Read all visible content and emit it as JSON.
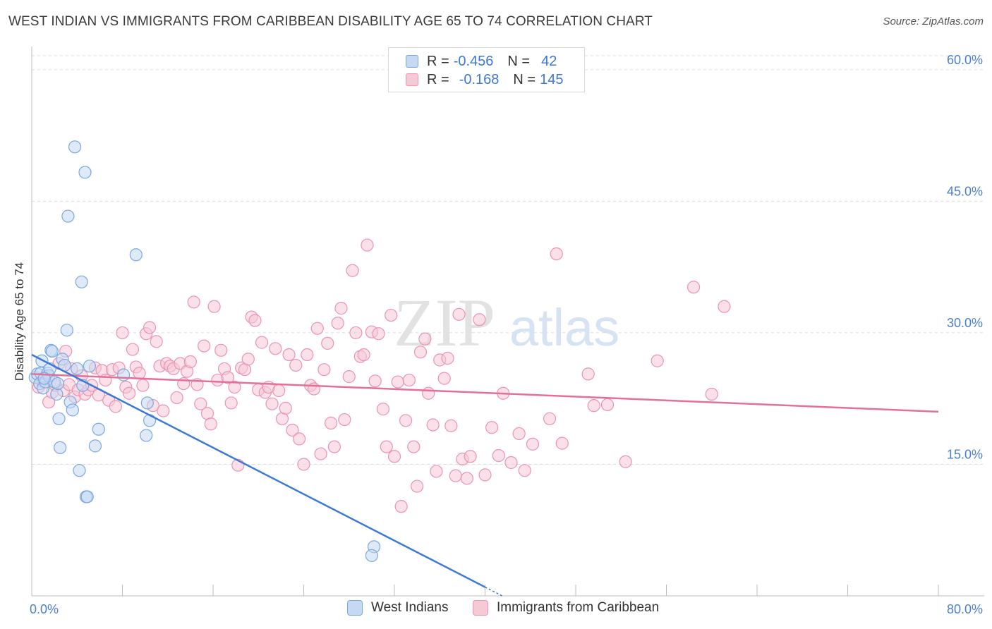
{
  "title": "WEST INDIAN VS IMMIGRANTS FROM CARIBBEAN DISABILITY AGE 65 TO 74 CORRELATION CHART",
  "source": "Source: ZipAtlas.com",
  "watermark": {
    "zip": "ZIP",
    "atlas": "atlas"
  },
  "legend": {
    "rows": [
      {
        "r_label": "R =",
        "r_value": "-0.456",
        "n_label": "N =",
        "n_value": "42"
      },
      {
        "r_label": "R =",
        "r_value": "-0.168",
        "n_label": "N =",
        "n_value": "145"
      }
    ]
  },
  "colors": {
    "blue_fill": "#c5d9f3",
    "blue_stroke": "#7ba7e0",
    "blue_line": "#3b78d8",
    "pink_fill": "#f6c9d7",
    "pink_stroke": "#eb93b1",
    "pink_line": "#e4709a",
    "grid": "#dcdcdc",
    "axis_text": "#4a7fd0"
  },
  "chart_data": {
    "type": "scatter",
    "title": "WEST INDIAN VS IMMIGRANTS FROM CARIBBEAN DISABILITY AGE 65 TO 74 CORRELATION CHART",
    "xlabel": "",
    "ylabel": "Disability Age 65 to 74",
    "xlim": [
      0,
      80
    ],
    "ylim": [
      0,
      62
    ],
    "x_ticks": [
      0,
      8,
      16,
      24,
      32,
      40,
      48,
      56,
      64,
      72,
      80
    ],
    "x_tick_labels": {
      "0": "0.0%",
      "80": "80.0%"
    },
    "y_ticks": [
      15,
      30,
      45,
      60
    ],
    "y_tick_labels": [
      "15.0%",
      "30.0%",
      "45.0%",
      "60.0%"
    ],
    "grid": true,
    "legend_position": "top-center",
    "series": [
      {
        "name": "West Indians",
        "r": -0.456,
        "n": 42,
        "trend": {
          "x": [
            0,
            40
          ],
          "y": [
            27.5,
            1.0
          ],
          "dashed_extension_to_x": 41.5
        },
        "points": [
          [
            0.3,
            24.9
          ],
          [
            0.5,
            25.3
          ],
          [
            0.7,
            24.2
          ],
          [
            0.8,
            25.4
          ],
          [
            0.9,
            26.8
          ],
          [
            1.0,
            23.7
          ],
          [
            1.2,
            24.4
          ],
          [
            1.4,
            25.4
          ],
          [
            1.5,
            25.1
          ],
          [
            1.6,
            25.9
          ],
          [
            1.7,
            28.0
          ],
          [
            1.8,
            27.9
          ],
          [
            2.0,
            24.4
          ],
          [
            2.2,
            23.0
          ],
          [
            2.3,
            24.2
          ],
          [
            2.4,
            20.2
          ],
          [
            2.5,
            16.9
          ],
          [
            2.7,
            27.0
          ],
          [
            2.9,
            26.3
          ],
          [
            3.1,
            30.3
          ],
          [
            3.2,
            43.3
          ],
          [
            3.4,
            22.1
          ],
          [
            3.6,
            21.2
          ],
          [
            3.8,
            51.2
          ],
          [
            4.0,
            25.9
          ],
          [
            4.2,
            14.3
          ],
          [
            4.4,
            35.8
          ],
          [
            4.5,
            24.0
          ],
          [
            4.7,
            48.3
          ],
          [
            4.8,
            11.3
          ],
          [
            4.9,
            11.3
          ],
          [
            5.1,
            26.2
          ],
          [
            5.6,
            17.1
          ],
          [
            5.9,
            19.0
          ],
          [
            8.1,
            25.2
          ],
          [
            9.2,
            38.9
          ],
          [
            10.1,
            18.3
          ],
          [
            10.2,
            22.0
          ],
          [
            10.4,
            20.0
          ],
          [
            30.2,
            5.6
          ],
          [
            30.0,
            4.6
          ],
          [
            1.1,
            24.8
          ]
        ]
      },
      {
        "name": "Immigrants from Caribbean",
        "r": -0.168,
        "n": 145,
        "trend": {
          "x": [
            0,
            80
          ],
          "y": [
            25.3,
            21.0
          ]
        },
        "points": [
          [
            0.6,
            23.8
          ],
          [
            0.9,
            24.5
          ],
          [
            1.2,
            25.0
          ],
          [
            1.5,
            22.1
          ],
          [
            1.8,
            23.2
          ],
          [
            2.1,
            24.0
          ],
          [
            2.4,
            26.5
          ],
          [
            2.8,
            23.4
          ],
          [
            3.0,
            27.9
          ],
          [
            3.3,
            24.1
          ],
          [
            3.5,
            25.9
          ],
          [
            3.8,
            22.7
          ],
          [
            4.1,
            23.5
          ],
          [
            4.4,
            25.1
          ],
          [
            4.7,
            23.0
          ],
          [
            5.0,
            23.5
          ],
          [
            5.3,
            24.0
          ],
          [
            5.6,
            26.0
          ],
          [
            5.9,
            22.9
          ],
          [
            6.2,
            25.7
          ],
          [
            6.5,
            24.6
          ],
          [
            6.8,
            22.3
          ],
          [
            7.1,
            25.8
          ],
          [
            7.4,
            21.6
          ],
          [
            7.7,
            26.0
          ],
          [
            8.0,
            30.0
          ],
          [
            8.3,
            23.8
          ],
          [
            8.6,
            23.1
          ],
          [
            8.9,
            28.1
          ],
          [
            9.2,
            26.1
          ],
          [
            9.5,
            25.4
          ],
          [
            9.8,
            24.0
          ],
          [
            10.1,
            29.9
          ],
          [
            10.4,
            30.6
          ],
          [
            10.7,
            21.7
          ],
          [
            11.0,
            29.0
          ],
          [
            11.3,
            26.2
          ],
          [
            11.6,
            21.1
          ],
          [
            11.9,
            26.5
          ],
          [
            12.2,
            26.2
          ],
          [
            12.5,
            25.9
          ],
          [
            12.8,
            22.6
          ],
          [
            13.1,
            26.5
          ],
          [
            13.4,
            24.2
          ],
          [
            13.7,
            25.6
          ],
          [
            14.0,
            26.7
          ],
          [
            14.3,
            33.5
          ],
          [
            14.6,
            24.1
          ],
          [
            14.9,
            21.9
          ],
          [
            15.2,
            28.5
          ],
          [
            15.5,
            20.8
          ],
          [
            15.8,
            19.6
          ],
          [
            16.1,
            33.0
          ],
          [
            16.4,
            24.6
          ],
          [
            16.7,
            28.0
          ],
          [
            17.0,
            25.9
          ],
          [
            17.3,
            24.9
          ],
          [
            17.6,
            22.0
          ],
          [
            17.9,
            23.8
          ],
          [
            18.2,
            14.9
          ],
          [
            18.5,
            26.0
          ],
          [
            18.8,
            25.8
          ],
          [
            19.1,
            27.0
          ],
          [
            19.4,
            31.8
          ],
          [
            19.7,
            31.4
          ],
          [
            20.0,
            23.5
          ],
          [
            20.3,
            28.9
          ],
          [
            20.6,
            23.2
          ],
          [
            20.9,
            23.8
          ],
          [
            21.2,
            21.9
          ],
          [
            21.5,
            28.2
          ],
          [
            21.8,
            23.4
          ],
          [
            22.1,
            20.2
          ],
          [
            22.4,
            21.4
          ],
          [
            22.7,
            27.5
          ],
          [
            23.0,
            18.9
          ],
          [
            23.3,
            26.3
          ],
          [
            23.6,
            17.9
          ],
          [
            24.0,
            15.0
          ],
          [
            24.3,
            27.5
          ],
          [
            24.6,
            24.0
          ],
          [
            24.9,
            23.6
          ],
          [
            25.2,
            30.5
          ],
          [
            25.5,
            16.2
          ],
          [
            25.8,
            25.8
          ],
          [
            26.1,
            28.8
          ],
          [
            26.4,
            19.7
          ],
          [
            26.7,
            17.0
          ],
          [
            27.0,
            31.1
          ],
          [
            27.3,
            32.8
          ],
          [
            27.6,
            20.1
          ],
          [
            28.0,
            25.0
          ],
          [
            28.3,
            37.1
          ],
          [
            28.6,
            30.0
          ],
          [
            29.0,
            27.3
          ],
          [
            29.3,
            27.5
          ],
          [
            29.6,
            40.0
          ],
          [
            30.0,
            30.1
          ],
          [
            30.3,
            24.5
          ],
          [
            30.6,
            29.9
          ],
          [
            31.0,
            21.3
          ],
          [
            31.3,
            17.0
          ],
          [
            31.7,
            32.0
          ],
          [
            32.0,
            15.9
          ],
          [
            32.3,
            24.4
          ],
          [
            32.6,
            10.2
          ],
          [
            33.0,
            20.0
          ],
          [
            33.3,
            24.6
          ],
          [
            33.7,
            17.0
          ],
          [
            34.0,
            12.5
          ],
          [
            34.3,
            27.8
          ],
          [
            34.7,
            29.3
          ],
          [
            35.0,
            23.1
          ],
          [
            35.4,
            19.5
          ],
          [
            35.7,
            14.2
          ],
          [
            36.0,
            26.9
          ],
          [
            36.4,
            24.8
          ],
          [
            36.7,
            27.1
          ],
          [
            37.0,
            19.4
          ],
          [
            37.4,
            13.7
          ],
          [
            37.7,
            32.1
          ],
          [
            38.0,
            15.6
          ],
          [
            38.4,
            13.4
          ],
          [
            38.7,
            15.9
          ],
          [
            39.5,
            31.5
          ],
          [
            40.0,
            13.8
          ],
          [
            40.6,
            19.2
          ],
          [
            41.2,
            16.0
          ],
          [
            41.6,
            23.1
          ],
          [
            42.3,
            15.2
          ],
          [
            43.0,
            18.5
          ],
          [
            43.5,
            14.3
          ],
          [
            44.2,
            17.3
          ],
          [
            45.7,
            20.2
          ],
          [
            46.8,
            17.4
          ],
          [
            49.1,
            25.3
          ],
          [
            49.6,
            21.7
          ],
          [
            50.8,
            21.8
          ],
          [
            52.4,
            15.3
          ],
          [
            55.2,
            26.8
          ],
          [
            58.4,
            35.2
          ],
          [
            60.0,
            23.0
          ],
          [
            61.1,
            33.0
          ],
          [
            46.3,
            39.0
          ]
        ]
      }
    ]
  },
  "bottom_legend": [
    {
      "label": "West Indians"
    },
    {
      "label": "Immigrants from Caribbean"
    }
  ]
}
